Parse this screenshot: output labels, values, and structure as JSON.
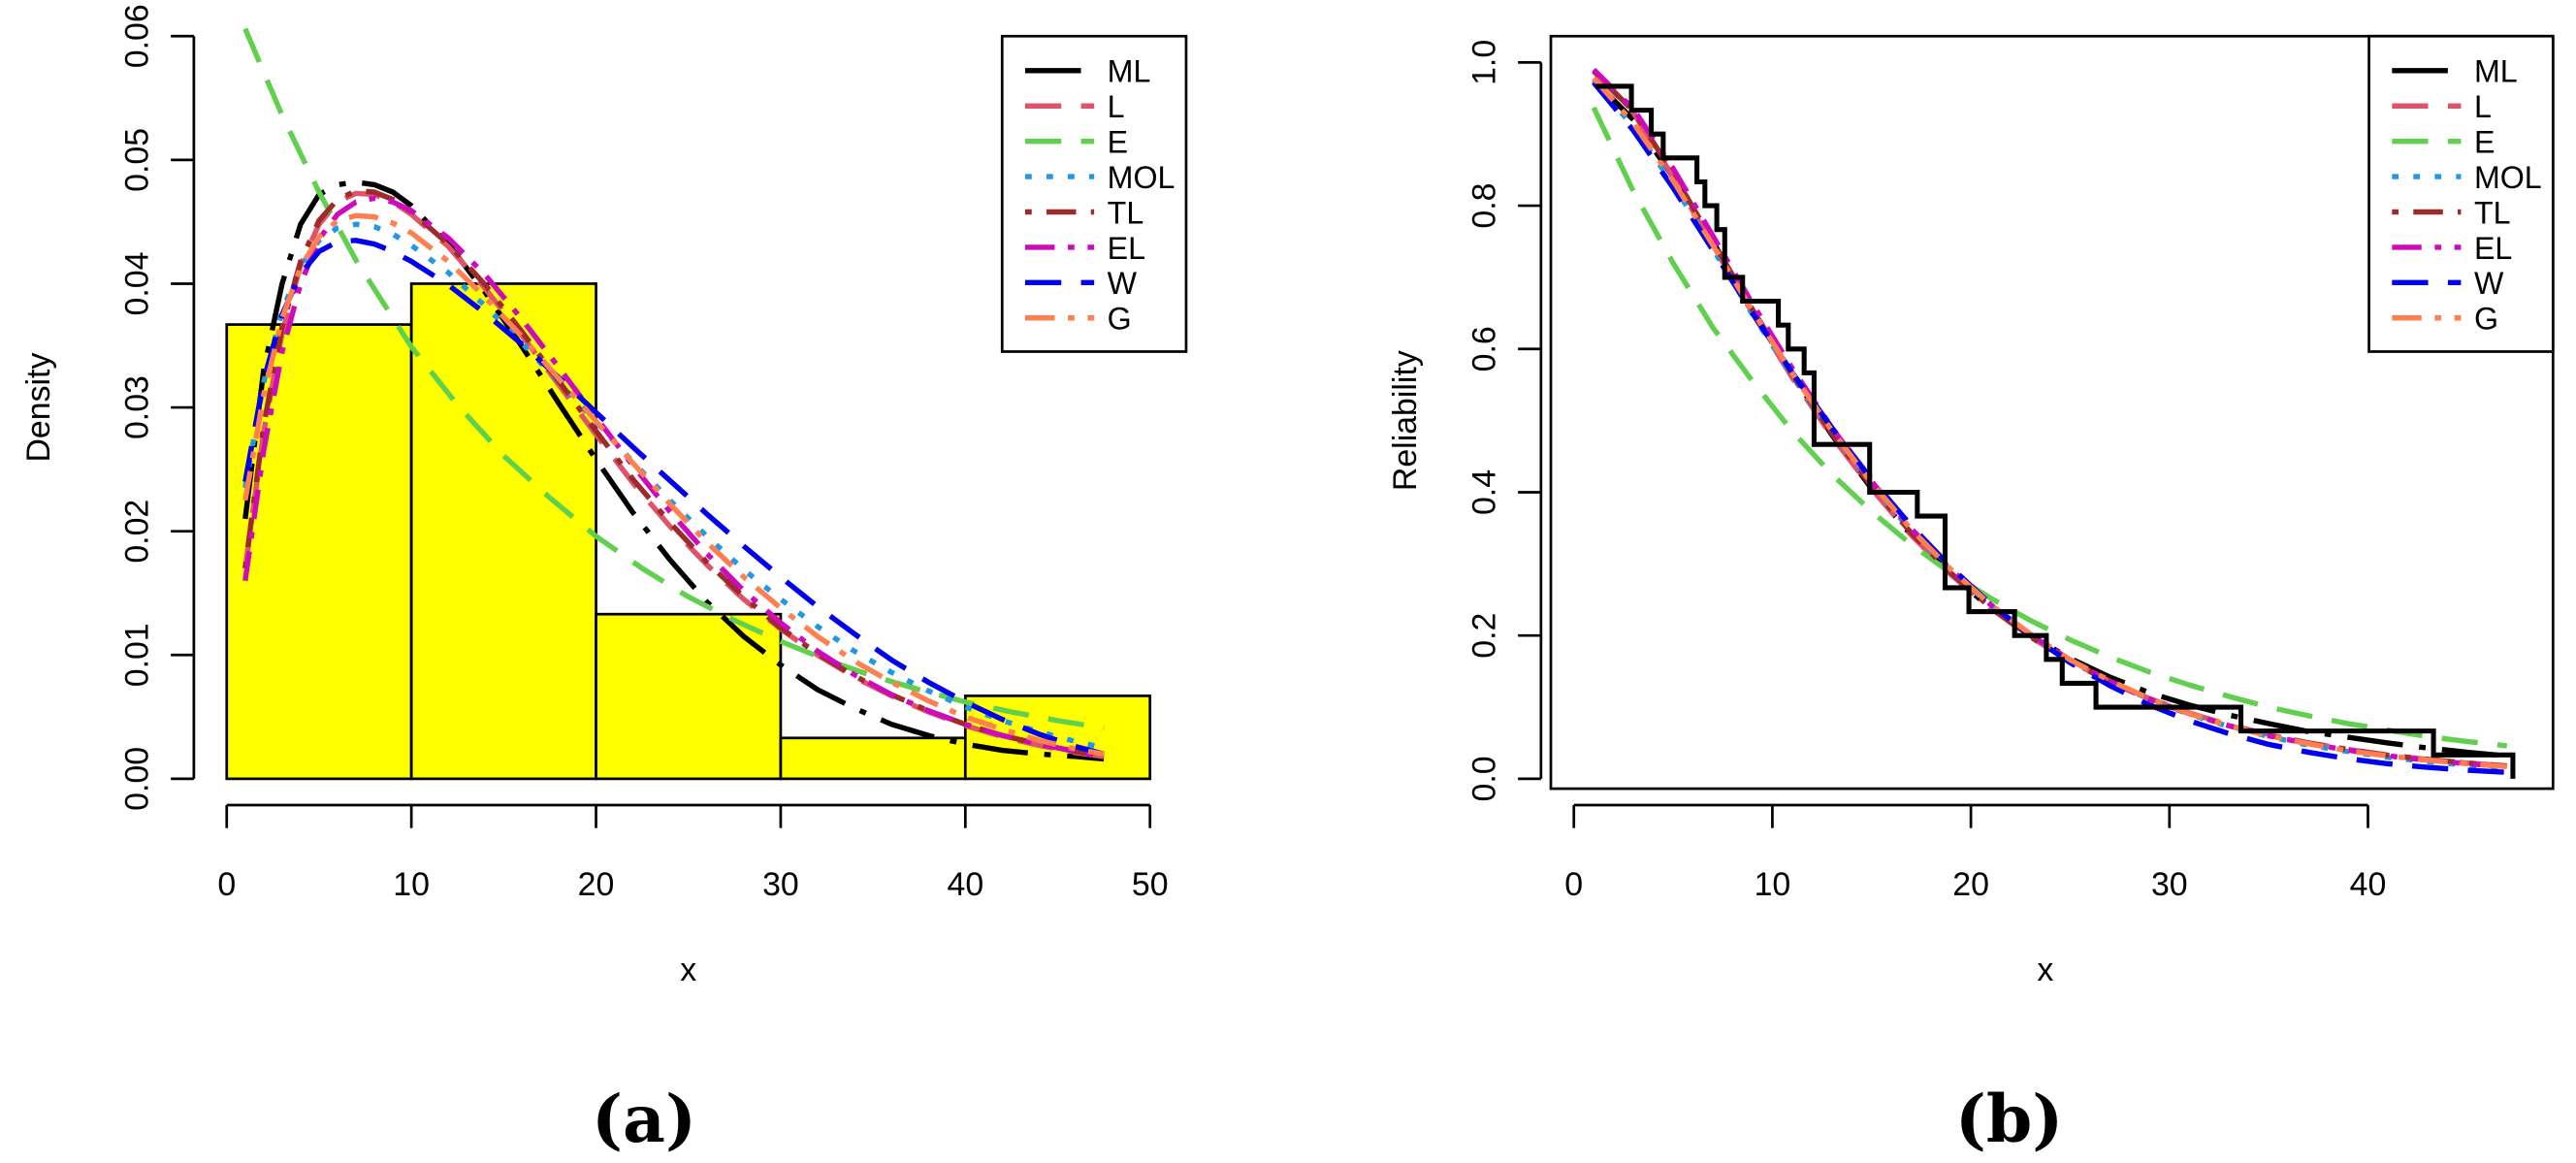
{
  "colors": {
    "ML": "#000000",
    "L": "#DF536B",
    "E": "#61D04F",
    "MOL": "#2297E6",
    "TL": "#9E2A2B",
    "EL": "#CD0BBC",
    "W": "#0000EE",
    "G": "#FF7F50",
    "hist_fill": "#FFFF00",
    "axis": "#000000"
  },
  "legend_entries": [
    "ML",
    "L",
    "E",
    "MOL",
    "TL",
    "EL",
    "W",
    "G"
  ],
  "chart_data": [
    {
      "type": "line",
      "panel_label": "(a)",
      "xlabel": "x",
      "ylabel": "Density",
      "xlim": [
        0,
        50
      ],
      "ylim": [
        0,
        0.06
      ],
      "xticks": [
        "0",
        "10",
        "20",
        "30",
        "40",
        "50"
      ],
      "yticks": [
        "0.00",
        "0.01",
        "0.02",
        "0.03",
        "0.04",
        "0.05",
        "0.06"
      ],
      "legend_position": "top-right",
      "histogram": {
        "bins": [
          [
            0,
            10
          ],
          [
            10,
            20
          ],
          [
            20,
            30
          ],
          [
            30,
            40
          ],
          [
            40,
            50
          ]
        ],
        "values": [
          0.0367,
          0.04,
          0.0133,
          0.0033,
          0.0067
        ]
      },
      "series": [
        {
          "name": "ML",
          "dash": "longdash-dot",
          "x": [
            1,
            2,
            3,
            4,
            5,
            6,
            7,
            8,
            9,
            10,
            12,
            14,
            16,
            18,
            20,
            22,
            24,
            26,
            28,
            30,
            32,
            34,
            36,
            38,
            40,
            42,
            44,
            46,
            47.5
          ],
          "y": [
            0.021,
            0.033,
            0.04,
            0.0448,
            0.0472,
            0.048,
            0.0482,
            0.048,
            0.0474,
            0.0463,
            0.0432,
            0.0393,
            0.0349,
            0.0303,
            0.0258,
            0.0215,
            0.0177,
            0.0143,
            0.0115,
            0.0092,
            0.0072,
            0.0057,
            0.0044,
            0.0035,
            0.0028,
            0.0023,
            0.002,
            0.0018,
            0.0016
          ]
        },
        {
          "name": "L",
          "dash": "dash",
          "x": [
            1,
            2,
            3,
            4,
            5,
            6,
            7,
            8,
            9,
            10,
            12,
            14,
            16,
            18,
            20,
            22,
            24,
            26,
            28,
            30,
            32,
            34,
            36,
            38,
            40,
            42,
            44,
            46,
            47.5
          ],
          "y": [
            0.017,
            0.028,
            0.036,
            0.0415,
            0.0448,
            0.0466,
            0.0473,
            0.0472,
            0.0466,
            0.0456,
            0.043,
            0.0396,
            0.0358,
            0.0318,
            0.0278,
            0.0239,
            0.0204,
            0.0173,
            0.0145,
            0.0121,
            0.01,
            0.0082,
            0.0067,
            0.0054,
            0.0043,
            0.0034,
            0.0027,
            0.0021,
            0.0018
          ]
        },
        {
          "name": "E",
          "dash": "dash",
          "x": [
            1,
            3,
            5,
            7,
            10,
            12.5,
            15,
            17.5,
            20,
            22.5,
            25,
            27.5,
            30,
            32.5,
            35,
            37.5,
            40,
            42.5,
            45,
            47.5
          ],
          "y": [
            0.0606,
            0.0536,
            0.0474,
            0.0419,
            0.0349,
            0.0302,
            0.0261,
            0.0227,
            0.0196,
            0.017,
            0.0147,
            0.0128,
            0.0111,
            0.0096,
            0.0083,
            0.0072,
            0.0062,
            0.0054,
            0.0047,
            0.0041
          ]
        },
        {
          "name": "MOL",
          "dash": "dot",
          "x": [
            1,
            2,
            3,
            4,
            5,
            6,
            7,
            8,
            9,
            10,
            12,
            14,
            16,
            18,
            20,
            22,
            24,
            26,
            28,
            30,
            32,
            34,
            36,
            38,
            40,
            42,
            44,
            46,
            47.5
          ],
          "y": [
            0.0235,
            0.032,
            0.0378,
            0.0414,
            0.0435,
            0.0445,
            0.0448,
            0.0446,
            0.044,
            0.0431,
            0.0409,
            0.0382,
            0.0352,
            0.032,
            0.0288,
            0.0256,
            0.0225,
            0.0196,
            0.0169,
            0.0145,
            0.0123,
            0.0103,
            0.0086,
            0.0071,
            0.0058,
            0.0047,
            0.0038,
            0.003,
            0.0025
          ]
        },
        {
          "name": "TL",
          "dash": "dot-dash",
          "x": [
            1,
            2,
            3,
            4,
            5,
            6,
            7,
            8,
            9,
            10,
            12,
            14,
            16,
            18,
            20,
            22,
            24,
            26,
            28,
            30,
            32,
            34,
            36,
            38,
            40,
            42,
            44,
            46,
            47.5
          ],
          "y": [
            0.017,
            0.0285,
            0.0365,
            0.0418,
            0.0451,
            0.0468,
            0.0475,
            0.0474,
            0.0468,
            0.0458,
            0.0432,
            0.0399,
            0.0361,
            0.0321,
            0.0281,
            0.0242,
            0.0207,
            0.0175,
            0.0147,
            0.0122,
            0.0101,
            0.0083,
            0.0068,
            0.0055,
            0.0044,
            0.0035,
            0.0028,
            0.0022,
            0.0018
          ]
        },
        {
          "name": "EL",
          "dash": "dash-dot",
          "x": [
            1,
            2,
            3,
            4,
            5,
            6,
            7,
            8,
            9,
            10,
            12,
            14,
            16,
            18,
            20,
            22,
            24,
            26,
            28,
            30,
            32,
            34,
            36,
            38,
            40,
            42,
            44,
            46,
            47.5
          ],
          "y": [
            0.016,
            0.0265,
            0.0345,
            0.04,
            0.0436,
            0.0456,
            0.0466,
            0.0469,
            0.0466,
            0.0459,
            0.0437,
            0.0407,
            0.0371,
            0.0332,
            0.0292,
            0.0253,
            0.0216,
            0.0182,
            0.0152,
            0.0126,
            0.0103,
            0.0084,
            0.0068,
            0.0055,
            0.0044,
            0.0035,
            0.0028,
            0.0022,
            0.0018
          ]
        },
        {
          "name": "W",
          "dash": "dash",
          "x": [
            1,
            2,
            3,
            4,
            5,
            6,
            7,
            8,
            9,
            10,
            12,
            14,
            16,
            18,
            20,
            22,
            24,
            26,
            28,
            30,
            32,
            34,
            36,
            38,
            40,
            42,
            44,
            46,
            47.5
          ],
          "y": [
            0.024,
            0.0322,
            0.0375,
            0.0408,
            0.0426,
            0.0434,
            0.0435,
            0.0432,
            0.0426,
            0.0418,
            0.0399,
            0.0376,
            0.0351,
            0.0324,
            0.0296,
            0.0268,
            0.0241,
            0.0214,
            0.0188,
            0.0163,
            0.0139,
            0.0117,
            0.0096,
            0.0078,
            0.0062,
            0.0048,
            0.0036,
            0.0026,
            0.002
          ]
        },
        {
          "name": "G",
          "dash": "dash-dot",
          "x": [
            1,
            2,
            3,
            4,
            5,
            6,
            7,
            8,
            9,
            10,
            12,
            14,
            16,
            18,
            20,
            22,
            24,
            26,
            28,
            30,
            32,
            34,
            36,
            38,
            40,
            42,
            44,
            46,
            47.5
          ],
          "y": [
            0.0225,
            0.031,
            0.0372,
            0.0413,
            0.0438,
            0.0451,
            0.0455,
            0.0454,
            0.0449,
            0.0441,
            0.0418,
            0.0389,
            0.0357,
            0.0323,
            0.0289,
            0.0255,
            0.0222,
            0.0191,
            0.0163,
            0.0138,
            0.0115,
            0.0095,
            0.0078,
            0.0063,
            0.005,
            0.004,
            0.0031,
            0.0024,
            0.002
          ]
        }
      ]
    },
    {
      "type": "line",
      "panel_label": "(b)",
      "xlabel": "x",
      "ylabel": "Reliability",
      "xlim": [
        0,
        47.5
      ],
      "ylim": [
        0,
        1
      ],
      "xticks": [
        "0",
        "10",
        "20",
        "30",
        "40"
      ],
      "yticks": [
        "0.0",
        "0.2",
        "0.4",
        "0.6",
        "0.8",
        "1.0"
      ],
      "legend_position": "top-right",
      "empirical_step": {
        "x": [
          1.1,
          2.9,
          3.9,
          4.5,
          6.2,
          6.6,
          7.2,
          7.6,
          8.5,
          10.3,
          10.8,
          11.6,
          12.1,
          14.9,
          17.3,
          18.7,
          19.9,
          22.2,
          23.8,
          24.6,
          26.3,
          33.6,
          34.7,
          43.3,
          47.3
        ],
        "y": [
          0.9667,
          0.9333,
          0.9,
          0.8667,
          0.8333,
          0.8,
          0.7667,
          0.7,
          0.6667,
          0.6333,
          0.6,
          0.5667,
          0.4667,
          0.4,
          0.3667,
          0.2667,
          0.2333,
          0.2,
          0.1667,
          0.1333,
          0.1,
          0.0667,
          0.0667,
          0.0333,
          0.0
        ]
      },
      "series": [
        {
          "name": "ML",
          "dash": "longdash-dot",
          "x": [
            1,
            3,
            5,
            7,
            9,
            11,
            13,
            15,
            17,
            19,
            21,
            23,
            25,
            27,
            29,
            31,
            33,
            35,
            37,
            39,
            41,
            43,
            45,
            47
          ],
          "y": [
            0.975,
            0.92,
            0.84,
            0.75,
            0.655,
            0.565,
            0.48,
            0.405,
            0.34,
            0.285,
            0.238,
            0.2,
            0.168,
            0.142,
            0.12,
            0.103,
            0.089,
            0.077,
            0.066,
            0.058,
            0.05,
            0.043,
            0.037,
            0.032
          ]
        },
        {
          "name": "L",
          "dash": "dash",
          "x": [
            1,
            3,
            5,
            7,
            9,
            11,
            13,
            15,
            17,
            19,
            21,
            23,
            25,
            27,
            29,
            31,
            33,
            35,
            37,
            39,
            41,
            43,
            45,
            47
          ],
          "y": [
            0.988,
            0.93,
            0.84,
            0.745,
            0.65,
            0.56,
            0.478,
            0.405,
            0.34,
            0.285,
            0.238,
            0.198,
            0.164,
            0.136,
            0.112,
            0.092,
            0.075,
            0.062,
            0.05,
            0.041,
            0.033,
            0.027,
            0.022,
            0.018
          ]
        },
        {
          "name": "E",
          "dash": "dash",
          "x": [
            1,
            3,
            5,
            7,
            9,
            11,
            13,
            15,
            17,
            19,
            21,
            23,
            25,
            27,
            29,
            31,
            33,
            35,
            37,
            39,
            41,
            43,
            45,
            47
          ],
          "y": [
            0.937,
            0.82,
            0.72,
            0.63,
            0.555,
            0.485,
            0.425,
            0.373,
            0.327,
            0.287,
            0.252,
            0.221,
            0.194,
            0.17,
            0.149,
            0.131,
            0.115,
            0.1,
            0.088,
            0.077,
            0.068,
            0.059,
            0.052,
            0.046
          ]
        },
        {
          "name": "MOL",
          "dash": "dot",
          "x": [
            1,
            3,
            5,
            7,
            9,
            11,
            13,
            15,
            17,
            19,
            21,
            23,
            25,
            27,
            29,
            31,
            33,
            35,
            37,
            39,
            41,
            43,
            45,
            47
          ],
          "y": [
            0.975,
            0.91,
            0.83,
            0.74,
            0.648,
            0.562,
            0.482,
            0.41,
            0.346,
            0.29,
            0.242,
            0.201,
            0.166,
            0.136,
            0.111,
            0.09,
            0.073,
            0.059,
            0.047,
            0.038,
            0.03,
            0.024,
            0.019,
            0.015
          ]
        },
        {
          "name": "TL",
          "dash": "dot-dash",
          "x": [
            1,
            3,
            5,
            7,
            9,
            11,
            13,
            15,
            17,
            19,
            21,
            23,
            25,
            27,
            29,
            31,
            33,
            35,
            37,
            39,
            41,
            43,
            45,
            47
          ],
          "y": [
            0.988,
            0.932,
            0.845,
            0.75,
            0.655,
            0.565,
            0.482,
            0.408,
            0.343,
            0.287,
            0.239,
            0.198,
            0.164,
            0.135,
            0.111,
            0.091,
            0.074,
            0.061,
            0.05,
            0.041,
            0.033,
            0.027,
            0.022,
            0.018
          ]
        },
        {
          "name": "EL",
          "dash": "dash-dot",
          "x": [
            1,
            3,
            5,
            7,
            9,
            11,
            13,
            15,
            17,
            19,
            21,
            23,
            25,
            27,
            29,
            31,
            33,
            35,
            37,
            39,
            41,
            43,
            45,
            47
          ],
          "y": [
            0.99,
            0.935,
            0.852,
            0.758,
            0.663,
            0.573,
            0.49,
            0.415,
            0.349,
            0.292,
            0.243,
            0.201,
            0.166,
            0.136,
            0.111,
            0.091,
            0.074,
            0.06,
            0.049,
            0.04,
            0.032,
            0.026,
            0.021,
            0.017
          ]
        },
        {
          "name": "W",
          "dash": "dash",
          "x": [
            1,
            3,
            5,
            7,
            9,
            11,
            13,
            15,
            17,
            19,
            21,
            23,
            25,
            27,
            29,
            31,
            33,
            35,
            37,
            39,
            41,
            43,
            45,
            47
          ],
          "y": [
            0.972,
            0.905,
            0.825,
            0.738,
            0.65,
            0.567,
            0.49,
            0.418,
            0.353,
            0.295,
            0.244,
            0.2,
            0.162,
            0.13,
            0.103,
            0.081,
            0.063,
            0.048,
            0.037,
            0.028,
            0.021,
            0.016,
            0.012,
            0.009
          ]
        },
        {
          "name": "G",
          "dash": "dash-dot",
          "x": [
            1,
            3,
            5,
            7,
            9,
            11,
            13,
            15,
            17,
            19,
            21,
            23,
            25,
            27,
            29,
            31,
            33,
            35,
            37,
            39,
            41,
            43,
            45,
            47
          ],
          "y": [
            0.978,
            0.915,
            0.835,
            0.745,
            0.653,
            0.566,
            0.486,
            0.413,
            0.348,
            0.292,
            0.243,
            0.202,
            0.166,
            0.137,
            0.112,
            0.091,
            0.074,
            0.06,
            0.049,
            0.039,
            0.032,
            0.026,
            0.021,
            0.017
          ]
        }
      ]
    }
  ]
}
